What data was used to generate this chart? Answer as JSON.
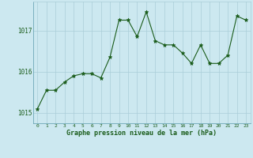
{
  "x": [
    0,
    1,
    2,
    3,
    4,
    5,
    6,
    7,
    8,
    9,
    10,
    11,
    12,
    13,
    14,
    15,
    16,
    17,
    18,
    19,
    20,
    21,
    22,
    23
  ],
  "y": [
    1015.1,
    1015.55,
    1015.55,
    1015.75,
    1015.9,
    1015.95,
    1015.95,
    1015.85,
    1016.35,
    1017.25,
    1017.25,
    1016.85,
    1017.45,
    1016.75,
    1016.65,
    1016.65,
    1016.45,
    1016.2,
    1016.65,
    1016.2,
    1016.2,
    1016.4,
    1017.35,
    1017.25
  ],
  "line_color": "#1a5c1a",
  "marker_color": "#1a5c1a",
  "bg_color": "#cce8f0",
  "grid_color": "#aacdd8",
  "xlabel": "Graphe pression niveau de la mer (hPa)",
  "xlabel_color": "#1a5c1a",
  "tick_color": "#1a5c1a",
  "ylim": [
    1014.75,
    1017.7
  ],
  "yticks": [
    1015,
    1016,
    1017
  ],
  "xlim": [
    -0.5,
    23.5
  ],
  "xticks": [
    0,
    1,
    2,
    3,
    4,
    5,
    6,
    7,
    8,
    9,
    10,
    11,
    12,
    13,
    14,
    15,
    16,
    17,
    18,
    19,
    20,
    21,
    22,
    23
  ]
}
